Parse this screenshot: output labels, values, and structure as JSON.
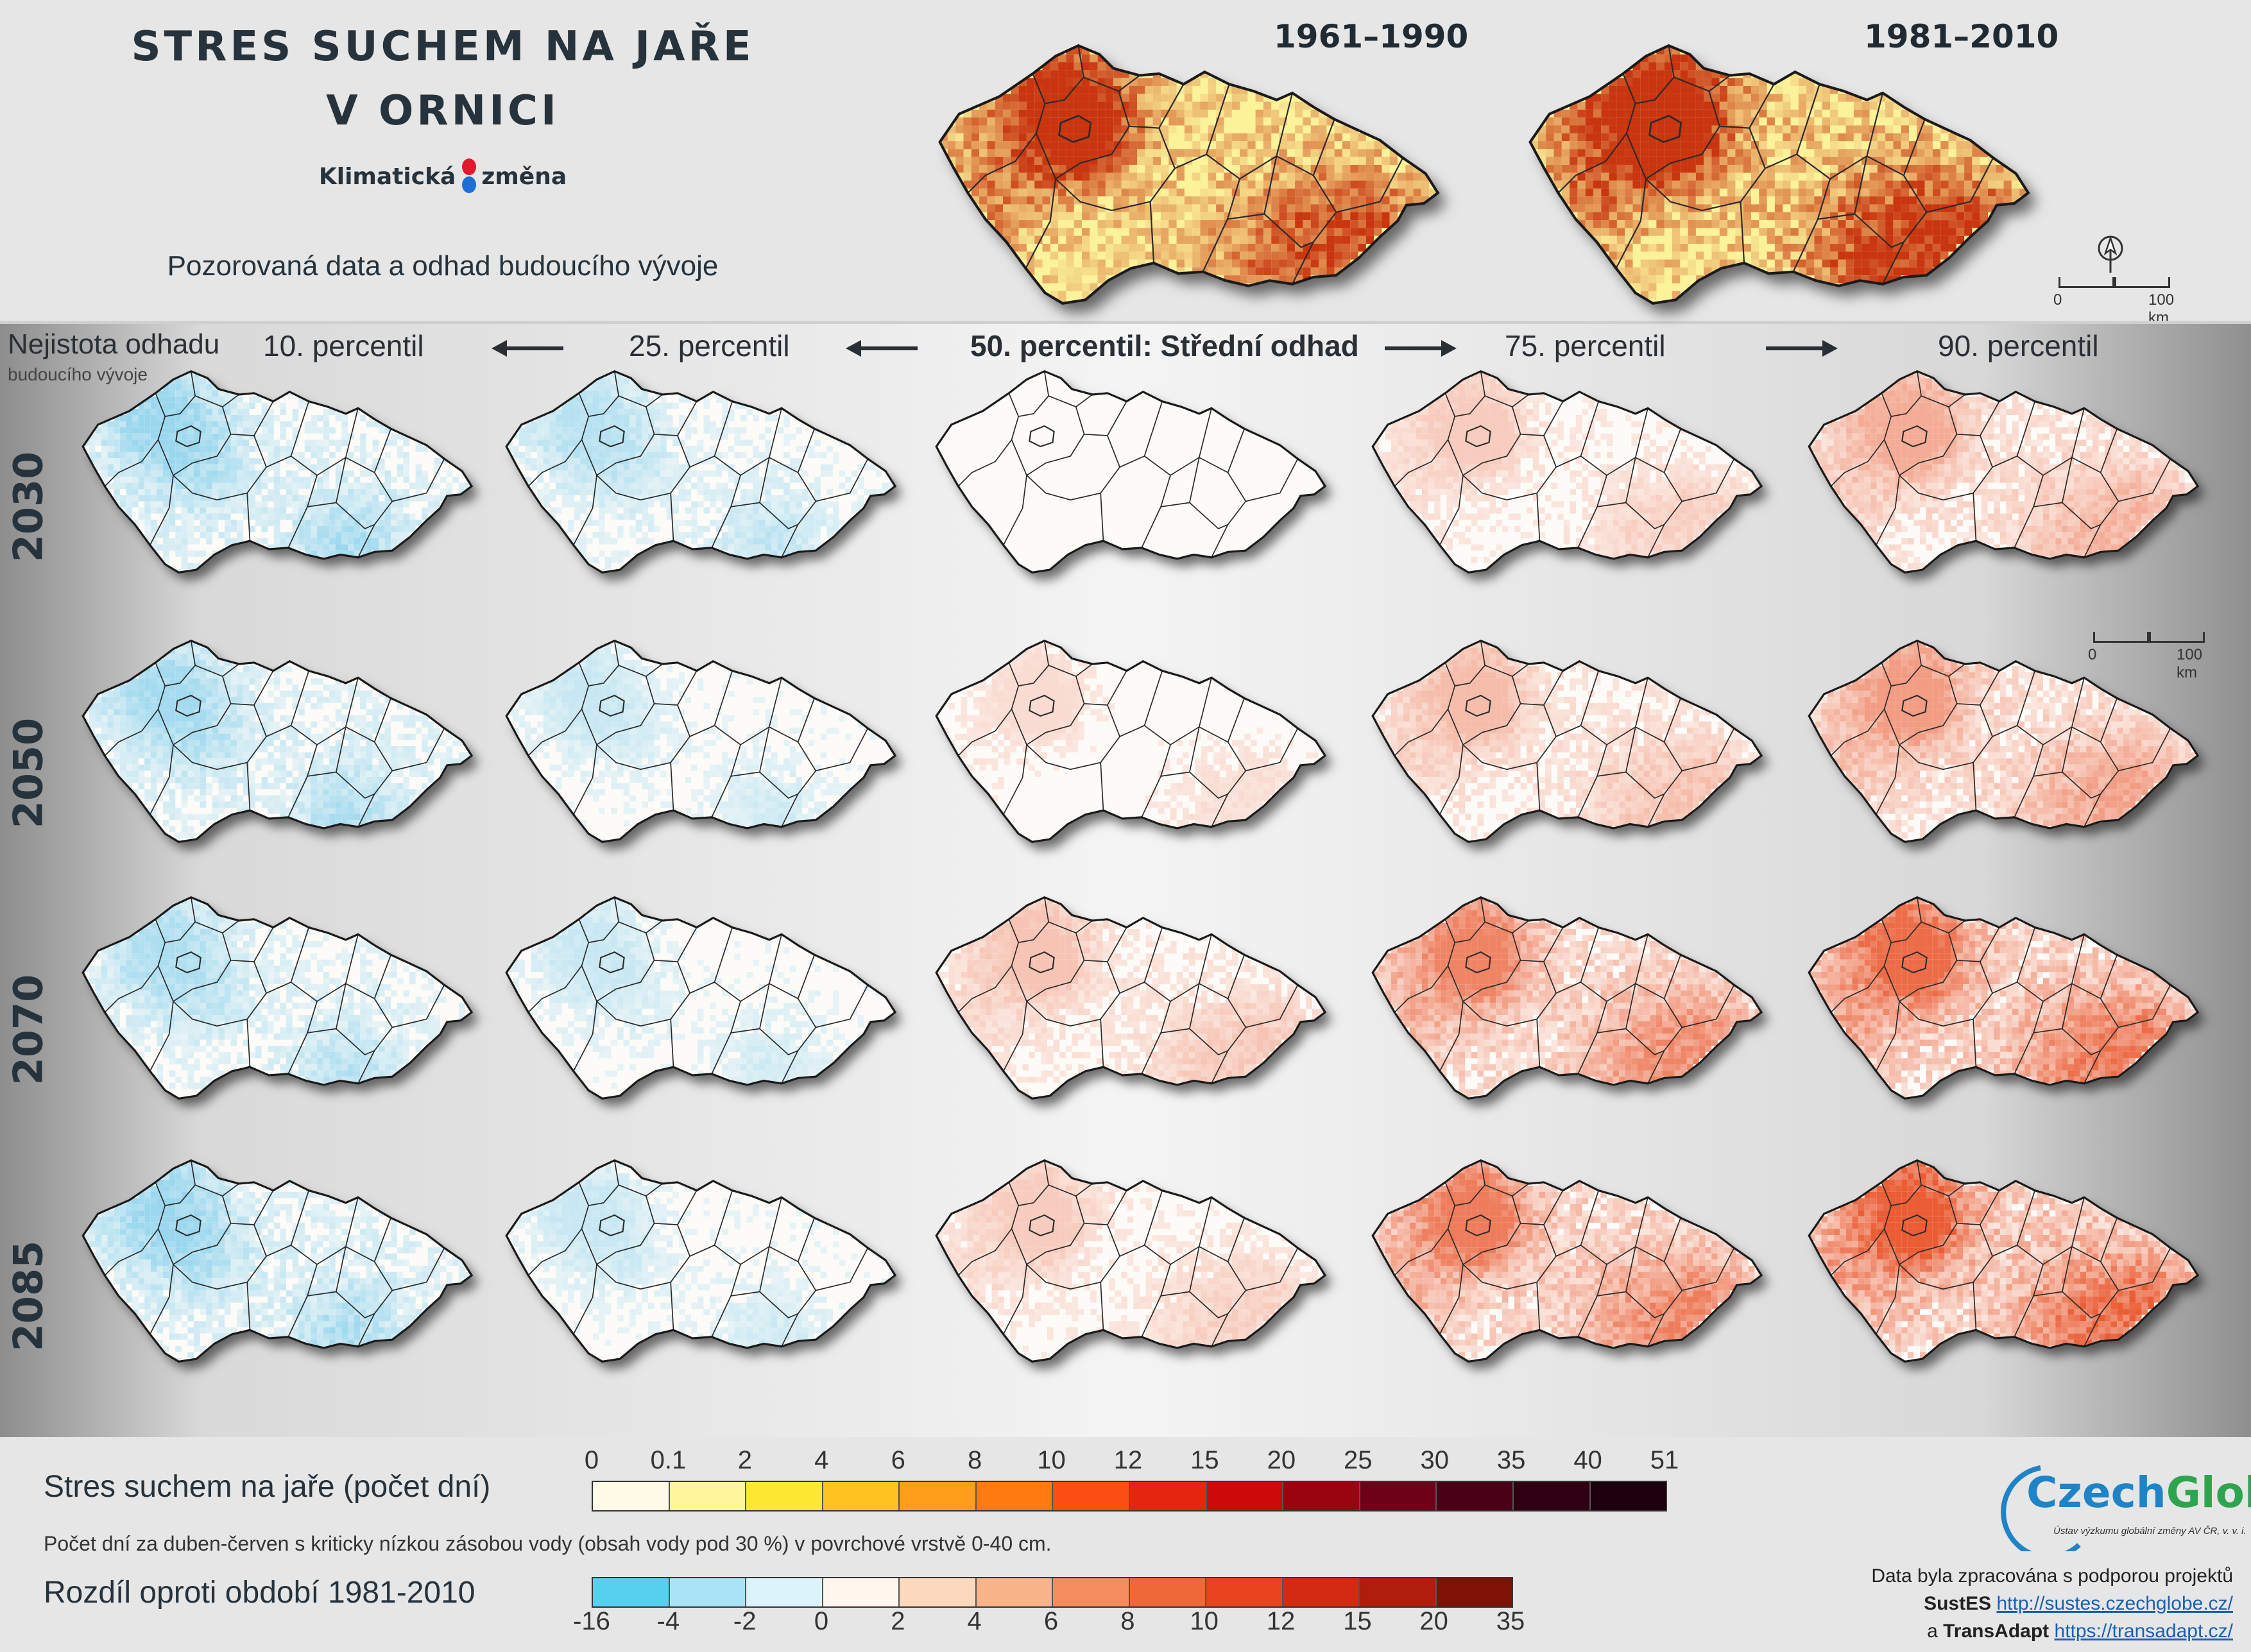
{
  "title": {
    "line1": "STRES SUCHEM NA JAŘE",
    "line2": "V ORNICI",
    "brand_left": "Klimatická",
    "brand_right": "změna",
    "subtitle": "Pozorovaná data a odhad budoucího vývoje"
  },
  "observed": [
    {
      "period": "1961–1990"
    },
    {
      "period": "1981–2010"
    }
  ],
  "uncertainty": {
    "label": "Nejistota odhadu",
    "sublabel": "budoucího vývoje"
  },
  "percentiles": [
    {
      "label": "10. percentil",
      "level": "low"
    },
    {
      "label": "25. percentil",
      "level": "low"
    },
    {
      "label": "50. percentil: Střední odhad",
      "level": "median"
    },
    {
      "label": "75. percentil",
      "level": "high"
    },
    {
      "label": "90. percentil",
      "level": "high"
    }
  ],
  "years": [
    "2030",
    "2050",
    "2070",
    "2085"
  ],
  "scalebar": {
    "zero": "0",
    "distance": "100 km"
  },
  "legend": {
    "abs_title": "Stres suchem na jaře (počet dní)",
    "abs_ticks": [
      "0",
      "0.1",
      "2",
      "4",
      "6",
      "8",
      "10",
      "12",
      "15",
      "20",
      "25",
      "30",
      "35",
      "40",
      "51"
    ],
    "abs_colors": [
      "#fffbe6",
      "#fff59a",
      "#ffe833",
      "#ffc21f",
      "#ff9e1a",
      "#ff7a10",
      "#fa4e12",
      "#e62510",
      "#cc0a0a",
      "#9a0410",
      "#6e0018",
      "#4a0016",
      "#2e0012",
      "#1c000d"
    ],
    "note": "Počet dní za duben-červen s kriticky nízkou zásobou vody (obsah vody pod 30 %) v povrchové vrstvě 0-40 cm.",
    "diff_title": "Rozdíl oproti období 1981-2010",
    "diff_ticks": [
      "-16",
      "-4",
      "-2",
      "0",
      "2",
      "4",
      "6",
      "8",
      "10",
      "12",
      "15",
      "20",
      "35"
    ],
    "diff_colors": [
      "#57cfef",
      "#a9e3f5",
      "#ddf3fa",
      "#fff6ee",
      "#fcd9bd",
      "#f9b48a",
      "#f48c5e",
      "#ef6839",
      "#e8451e",
      "#d42a12",
      "#b01d0d",
      "#7e1207"
    ]
  },
  "credits": {
    "logo_name_part1": "Czech",
    "logo_name_part2": "Globe",
    "logo_subtitle": "Ústav výzkumu globální změny AV ČR, v. v. i.",
    "intro": "Data byla zpracována s podporou projektů",
    "project1_name": "SustES",
    "project1_link": "http://sustes.czechglobe.cz/",
    "project2_prefix": "a",
    "project2_name": "TransAdapt",
    "project2_link": "https://transadapt.cz/"
  },
  "map_colors": {
    "observed_base": "#fbf29a",
    "observed_hot": "#c8350f",
    "drier": "#e9542a",
    "wetter": "#3fb6e6",
    "border": "#2b2b2b"
  },
  "diff_intensity": {
    "2030": [
      -0.55,
      -0.4,
      0.1,
      0.3,
      0.5
    ],
    "2050": [
      -0.5,
      -0.3,
      0.2,
      0.4,
      0.6
    ],
    "2070": [
      -0.45,
      -0.3,
      0.35,
      0.75,
      0.9
    ],
    "2085": [
      -0.55,
      -0.3,
      0.3,
      0.8,
      1.0
    ]
  }
}
